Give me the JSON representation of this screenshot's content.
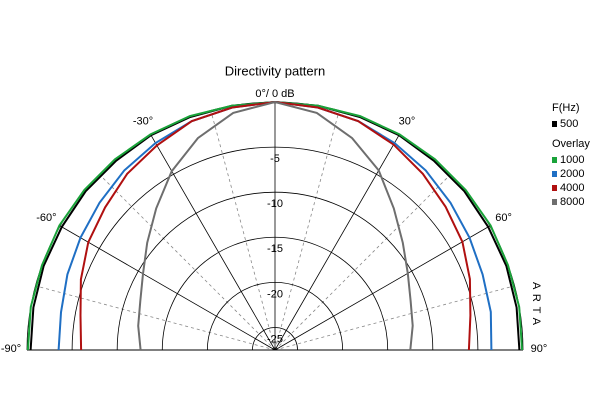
{
  "chart_data": {
    "type": "polar",
    "title": "Directivity pattern",
    "legend_title": "F(Hz)",
    "legend_subtitle": "Overlay",
    "watermark": "A R T A",
    "theta": [
      -90,
      -80,
      -70,
      -60,
      -50,
      -40,
      -30,
      -20,
      -10,
      0,
      10,
      20,
      30,
      40,
      50,
      60,
      70,
      80,
      90
    ],
    "rlim": [
      -27.5,
      0
    ],
    "rticks": [
      {
        "value": 0,
        "label": "0°/ 0 dB"
      },
      -5,
      -10,
      -15,
      -20,
      -25
    ],
    "thetaticks": [
      {
        "value": -90,
        "label": "-90°"
      },
      {
        "value": -60,
        "label": "-60°"
      },
      {
        "value": -30,
        "label": "-30°"
      },
      {
        "value": 30,
        "label": "30°"
      },
      {
        "value": 60,
        "label": "60°"
      },
      {
        "value": 90,
        "label": "90°"
      }
    ],
    "series": [
      {
        "name": "500",
        "color": "#000000",
        "values": [
          -0.4,
          -0.3,
          -0.2,
          -0.2,
          -0.1,
          -0.1,
          0,
          0,
          0,
          0,
          0,
          0,
          0,
          -0.1,
          -0.1,
          -0.2,
          -0.2,
          -0.3,
          -0.4
        ]
      },
      {
        "name": "1000",
        "color": "#1aa33a",
        "values": [
          -0.1,
          0,
          0,
          0.1,
          0.1,
          0.1,
          0.1,
          0.1,
          0,
          0,
          0,
          0.1,
          0.1,
          0.1,
          0.1,
          0.1,
          0,
          0,
          -0.1
        ]
      },
      {
        "name": "2000",
        "color": "#1f6fc4",
        "values": [
          -3.5,
          -3.4,
          -3,
          -2.6,
          -2.1,
          -1.5,
          -1,
          -0.5,
          -0.2,
          0,
          -0.2,
          -0.5,
          -1,
          -1.5,
          -2.1,
          -2.6,
          -3,
          -3.2,
          -3.5
        ]
      },
      {
        "name": "4000",
        "color": "#b01010",
        "values": [
          -6,
          -5.6,
          -4.6,
          -3.6,
          -2.9,
          -2,
          -1.3,
          -0.5,
          -0.2,
          0,
          -0.2,
          -0.5,
          -1.2,
          -2,
          -2.8,
          -3.5,
          -4.5,
          -5.5,
          -6
        ]
      },
      {
        "name": "8000",
        "color": "#6e6e6e",
        "values": [
          -12.6,
          -12.1,
          -11.6,
          -10.6,
          -9,
          -7,
          -4.6,
          -2.5,
          -0.8,
          0,
          -0.8,
          -2.5,
          -4.5,
          -7,
          -9,
          -10.5,
          -11.5,
          -12,
          -12.5
        ]
      }
    ]
  }
}
